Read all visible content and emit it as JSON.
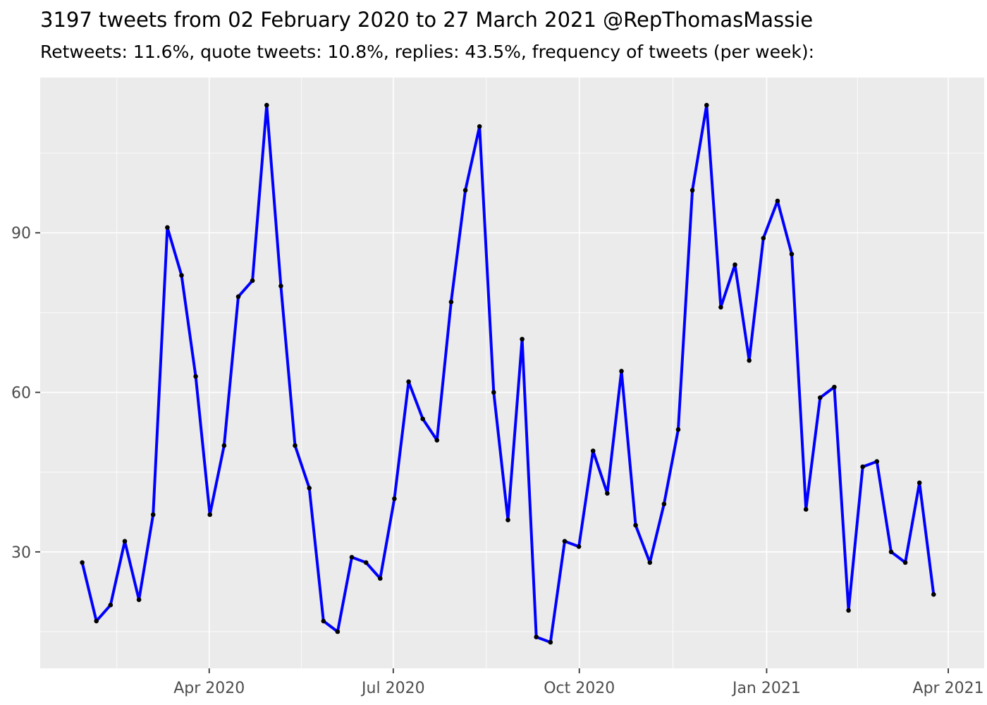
{
  "header": {
    "title": "3197 tweets from 02 February 2020 to 27 March 2021 @RepThomasMassie",
    "subtitle": "Retweets: 11.6%, quote tweets: 10.8%, replies: 43.5%, frequency of tweets (per week):"
  },
  "chart_data": {
    "type": "line",
    "title": "3197 tweets from 02 February 2020 to 27 March 2021 @RepThomasMassie",
    "subtitle": "Retweets: 11.6%, quote tweets: 10.8%, replies: 43.5%, frequency of tweets (per week):",
    "series": [
      {
        "name": "tweets per week",
        "values": [
          28,
          17,
          20,
          32,
          21,
          37,
          91,
          82,
          63,
          37,
          50,
          78,
          81,
          114,
          80,
          50,
          42,
          17,
          15,
          29,
          28,
          25,
          40,
          62,
          55,
          51,
          77,
          98,
          110,
          60,
          36,
          70,
          14,
          13,
          32,
          31,
          49,
          41,
          64,
          35,
          28,
          39,
          53,
          98,
          114,
          76,
          84,
          66,
          89,
          96,
          86,
          38,
          59,
          61,
          19,
          46,
          47,
          30,
          28,
          43,
          22
        ]
      }
    ],
    "total_tweets": 3197,
    "x_unit": "week_index",
    "x_domain": [
      -2.96,
      63.56
    ],
    "y_domain": [
      8.1,
      119.2
    ],
    "x_ticks": [
      {
        "label": "Apr 2020",
        "week": 8.95
      },
      {
        "label": "Jul 2020",
        "week": 21.92
      },
      {
        "label": "Oct 2020",
        "week": 35.03
      },
      {
        "label": "Jan 2021",
        "week": 48.23
      },
      {
        "label": "Apr 2021",
        "week": 61.03
      }
    ],
    "x_minor_ticks": [
      2.44,
      15.44,
      28.48,
      41.63,
      54.63
    ],
    "y_ticks": [
      30,
      60,
      90
    ],
    "y_minor_ticks": [
      15,
      45,
      75,
      105
    ],
    "grid": true,
    "legend": "none",
    "colors": {
      "line": "#0000FF",
      "point": "#000000",
      "panel_bg": "#EBEBEB",
      "grid": "#FFFFFF",
      "axis_text": "#4D4D4D",
      "tick_mark": "#333333",
      "title_text": "#000000"
    }
  }
}
